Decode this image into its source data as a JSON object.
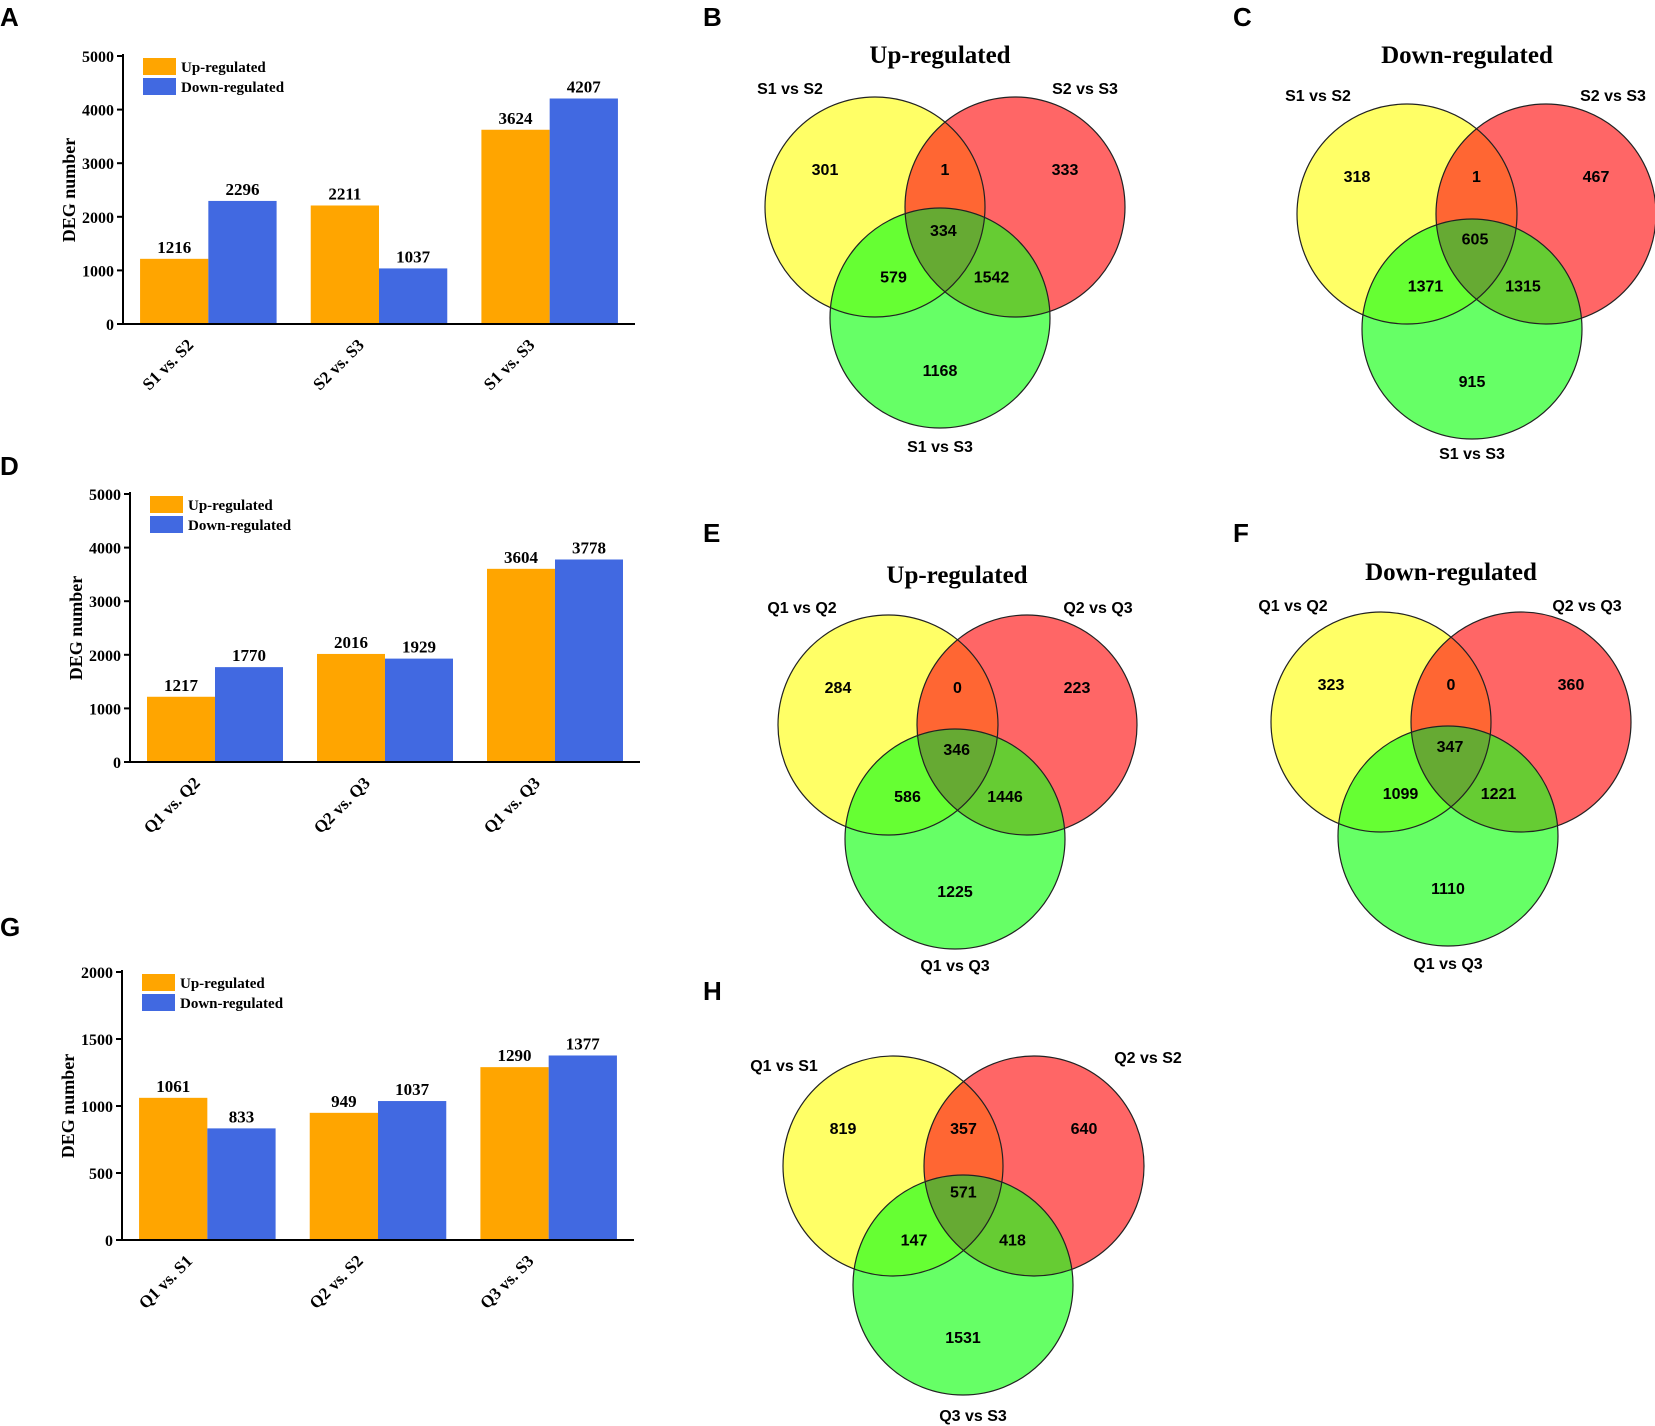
{
  "colors": {
    "up": "#FFA500",
    "down": "#4169E1",
    "yellow": "#FFFF66",
    "red": "#FF6666",
    "green": "#66FF66",
    "yr": "#FF6633",
    "yg": "#66FF33",
    "rg": "#66CC33",
    "all": "#66AA33"
  },
  "chart_data": [
    {
      "id": "A",
      "type": "bar",
      "title": "",
      "xlabel": "",
      "ylabel": "DEG number",
      "ylim": [
        0,
        5000
      ],
      "yticks": [
        0,
        1000,
        2000,
        3000,
        4000,
        5000
      ],
      "categories": [
        "S1 vs. S2",
        "S2 vs. S3",
        "S1 vs. S3"
      ],
      "series": [
        {
          "name": "Up-regulated",
          "values": [
            1216,
            2211,
            3624
          ]
        },
        {
          "name": "Down-regulated",
          "values": [
            2296,
            1037,
            4207
          ]
        }
      ],
      "legend": "top-left"
    },
    {
      "id": "D",
      "type": "bar",
      "title": "",
      "xlabel": "",
      "ylabel": "DEG number",
      "ylim": [
        0,
        5000
      ],
      "yticks": [
        0,
        1000,
        2000,
        3000,
        4000,
        5000
      ],
      "categories": [
        "Q1 vs. Q2",
        "Q2 vs. Q3",
        "Q1 vs. Q3"
      ],
      "series": [
        {
          "name": "Up-regulated",
          "values": [
            1217,
            2016,
            3604
          ]
        },
        {
          "name": "Down-regulated",
          "values": [
            1770,
            1929,
            3778
          ]
        }
      ],
      "legend": "top-left"
    },
    {
      "id": "G",
      "type": "bar",
      "title": "",
      "xlabel": "",
      "ylabel": "DEG number",
      "ylim": [
        0,
        2000
      ],
      "yticks": [
        0,
        500,
        1000,
        1500,
        2000
      ],
      "categories": [
        "Q1 vs. S1",
        "Q2 vs. S2",
        "Q3 vs. S3"
      ],
      "series": [
        {
          "name": "Up-regulated",
          "values": [
            1061,
            949,
            1290
          ]
        },
        {
          "name": "Down-regulated",
          "values": [
            833,
            1037,
            1377
          ]
        }
      ],
      "legend": "top-left"
    },
    {
      "id": "B",
      "type": "venn",
      "title": "Up-regulated",
      "sets": [
        "S1 vs S2",
        "S2 vs S3",
        "S1 vs S3"
      ],
      "regions": {
        "a": 301,
        "b": 333,
        "c": 1168,
        "ab": 1,
        "ac": 579,
        "bc": 1542,
        "abc": 334
      }
    },
    {
      "id": "C",
      "type": "venn",
      "title": "Down-regulated",
      "sets": [
        "S1 vs S2",
        "S2 vs S3",
        "S1 vs S3"
      ],
      "regions": {
        "a": 318,
        "b": 467,
        "c": 915,
        "ab": 1,
        "ac": 1371,
        "bc": 1315,
        "abc": 605
      }
    },
    {
      "id": "E",
      "type": "venn",
      "title": "Up-regulated",
      "sets": [
        "Q1 vs Q2",
        "Q2 vs Q3",
        "Q1 vs Q3"
      ],
      "regions": {
        "a": 284,
        "b": 223,
        "c": 1225,
        "ab": 0,
        "ac": 586,
        "bc": 1446,
        "abc": 346
      }
    },
    {
      "id": "F",
      "type": "venn",
      "title": "Down-regulated",
      "sets": [
        "Q1 vs Q2",
        "Q2 vs Q3",
        "Q1 vs Q3"
      ],
      "regions": {
        "a": 323,
        "b": 360,
        "c": 1110,
        "ab": 0,
        "ac": 1099,
        "bc": 1221,
        "abc": 347
      }
    },
    {
      "id": "H",
      "type": "venn",
      "title": "",
      "sets": [
        "Q1 vs S1",
        "Q2 vs S2",
        "Q3 vs S3"
      ],
      "regions": {
        "a": 819,
        "b": 640,
        "c": 1531,
        "ab": 357,
        "ac": 147,
        "bc": 418,
        "abc": 571
      }
    }
  ]
}
